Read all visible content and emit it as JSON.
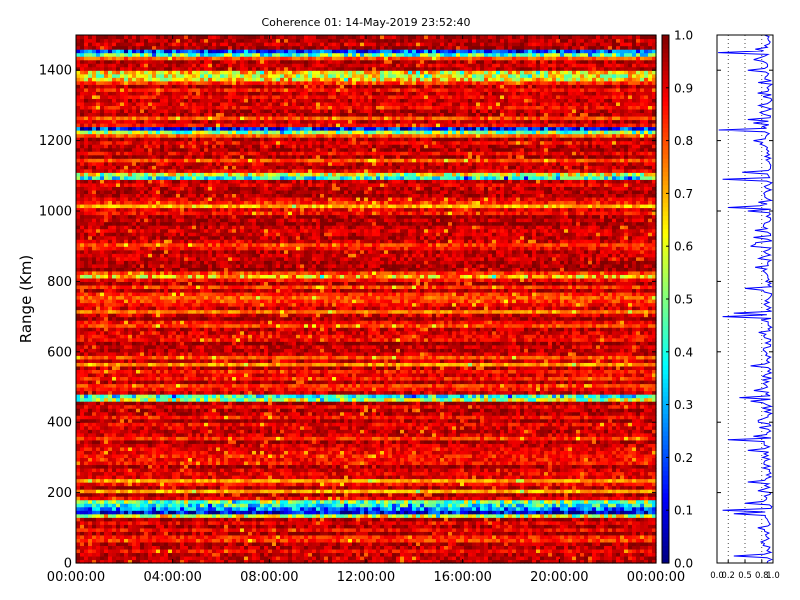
{
  "chart_data": [
    {
      "type": "heatmap",
      "title": "Coherence 01: 14-May-2019 23:52:40",
      "ylabel": "Range (Km)",
      "xlabel": "",
      "x_ticks": [
        "00:00:00",
        "04:00:00",
        "08:00:00",
        "12:00:00",
        "16:00:00",
        "20:00:00",
        "00:00:00"
      ],
      "xlim_hours": [
        0,
        24
      ],
      "ylim": [
        0,
        1500
      ],
      "y_ticks": [
        0,
        200,
        400,
        600,
        800,
        1000,
        1200,
        1400
      ],
      "colormap": "jet",
      "colorbar": {
        "min": 0.0,
        "max": 1.0,
        "ticks": [
          "0.0",
          "0.1",
          "0.2",
          "0.3",
          "0.4",
          "0.5",
          "0.6",
          "0.7",
          "0.8",
          "0.9",
          "1.0"
        ]
      },
      "range_step_km": 10,
      "low_coherence_bands": [
        {
          "range": 1450,
          "value": 0.2
        },
        {
          "range": 1440,
          "value": 0.45
        },
        {
          "range": 1390,
          "value": 0.65
        },
        {
          "range": 1380,
          "value": 0.6
        },
        {
          "range": 1370,
          "value": 0.65
        },
        {
          "range": 1230,
          "value": 0.15
        },
        {
          "range": 1220,
          "value": 0.5
        },
        {
          "range": 1100,
          "value": 0.6
        },
        {
          "range": 1090,
          "value": 0.4
        },
        {
          "range": 1010,
          "value": 0.7
        },
        {
          "range": 810,
          "value": 0.68
        },
        {
          "range": 710,
          "value": 0.75
        },
        {
          "range": 560,
          "value": 0.72
        },
        {
          "range": 470,
          "value": 0.4
        },
        {
          "range": 460,
          "value": 0.55
        },
        {
          "range": 230,
          "value": 0.72
        },
        {
          "range": 200,
          "value": 0.7
        },
        {
          "range": 170,
          "value": 0.5
        },
        {
          "range": 160,
          "value": 0.4
        },
        {
          "range": 150,
          "value": 0.25
        },
        {
          "range": 140,
          "value": 0.1
        },
        {
          "range": 130,
          "value": 0.6
        }
      ]
    },
    {
      "type": "line",
      "title": "",
      "xlabel": "",
      "ylabel": "",
      "xlim": [
        0,
        1
      ],
      "x_ticks": [
        "0.0",
        "0.2",
        "0.5",
        "0.8",
        "1.0"
      ],
      "ylim": [
        0,
        1500
      ],
      "grid": "vertical-dotted",
      "series_color": "#0000ff",
      "dips": [
        {
          "range": 1450,
          "value": 0.02
        },
        {
          "range": 1400,
          "value": 0.55
        },
        {
          "range": 1300,
          "value": 0.75
        },
        {
          "range": 1260,
          "value": 0.55
        },
        {
          "range": 1230,
          "value": 0.03
        },
        {
          "range": 1110,
          "value": 0.45
        },
        {
          "range": 1090,
          "value": 0.1
        },
        {
          "range": 1010,
          "value": 0.2
        },
        {
          "range": 1000,
          "value": 0.55
        },
        {
          "range": 900,
          "value": 0.6
        },
        {
          "range": 780,
          "value": 0.5
        },
        {
          "range": 700,
          "value": 0.1
        },
        {
          "range": 710,
          "value": 0.3
        },
        {
          "range": 560,
          "value": 0.6
        },
        {
          "range": 470,
          "value": 0.4
        },
        {
          "range": 460,
          "value": 0.6
        },
        {
          "range": 360,
          "value": 0.65
        },
        {
          "range": 320,
          "value": 0.55
        },
        {
          "range": 350,
          "value": 0.2
        },
        {
          "range": 230,
          "value": 0.55
        },
        {
          "range": 170,
          "value": 0.5
        },
        {
          "range": 150,
          "value": 0.1
        },
        {
          "range": 140,
          "value": 0.3
        },
        {
          "range": 20,
          "value": 0.3
        }
      ]
    }
  ]
}
